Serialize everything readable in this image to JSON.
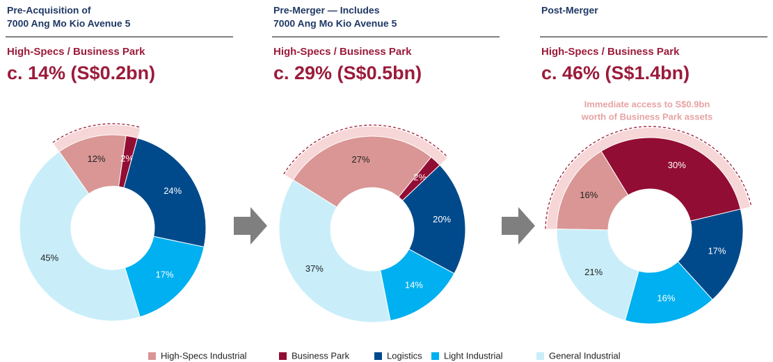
{
  "chart_data": [
    {
      "type": "donut",
      "title": [
        "Pre-Acquisition of",
        "7000 Ang Mo Kio Avenue 5"
      ],
      "subtitle": "High-Specs / Business Park",
      "headline": "c. 14% (S$0.2bn)",
      "categories": [
        "High-Specs Industrial",
        "Business Park",
        "Logistics",
        "Light Industrial",
        "General Industrial"
      ],
      "values": [
        12,
        2,
        24,
        17,
        45
      ],
      "value_labels": [
        "12%",
        "2%",
        "24%",
        "17%",
        "45%"
      ],
      "colors": [
        "#d99694",
        "#920d33",
        "#004a8c",
        "#00b0f0",
        "#c9eefa"
      ],
      "label_colors": [
        "#222222",
        "#ffffff",
        "#ffffff",
        "#ffffff",
        "#222222"
      ]
    },
    {
      "type": "donut",
      "title": [
        "Pre-Merger — Includes",
        "7000 Ang Mo Kio Avenue 5"
      ],
      "subtitle": "High-Specs / Business Park",
      "headline": "c. 29% (S$0.5bn)",
      "categories": [
        "High-Specs Industrial",
        "Business Park",
        "Logistics",
        "Light Industrial",
        "General Industrial"
      ],
      "values": [
        27,
        2,
        20,
        14,
        37
      ],
      "value_labels": [
        "27%",
        "2%",
        "20%",
        "14%",
        "37%"
      ],
      "colors": [
        "#d99694",
        "#920d33",
        "#004a8c",
        "#00b0f0",
        "#c9eefa"
      ],
      "label_colors": [
        "#222222",
        "#ffffff",
        "#ffffff",
        "#ffffff",
        "#222222"
      ]
    },
    {
      "type": "donut",
      "title": [
        "Post-Merger"
      ],
      "subtitle": "High-Specs / Business Park",
      "headline": "c. 46% (S$1.4bn)",
      "annotation": [
        "Immediate access to S$0.9bn",
        "worth of Business Park assets"
      ],
      "categories": [
        "High-Specs Industrial",
        "Business Park",
        "Logistics",
        "Light Industrial",
        "General Industrial"
      ],
      "values": [
        16,
        30,
        17,
        16,
        21
      ],
      "value_labels": [
        "16%",
        "30%",
        "17%",
        "16%",
        "21%"
      ],
      "colors": [
        "#d99694",
        "#920d33",
        "#004a8c",
        "#00b0f0",
        "#c9eefa"
      ],
      "label_colors": [
        "#222222",
        "#ffffff",
        "#ffffff",
        "#ffffff",
        "#222222"
      ]
    }
  ]
}
